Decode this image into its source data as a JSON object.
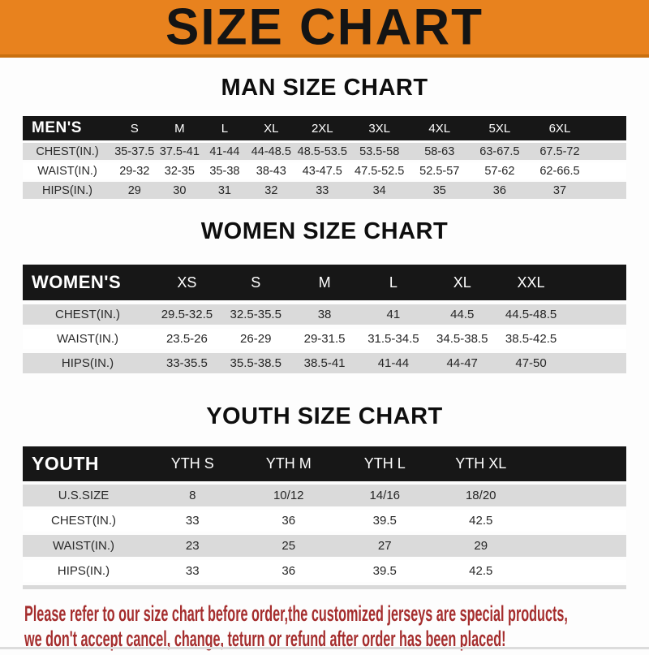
{
  "banner": {
    "title": "SIZE CHART",
    "bg_color": "#e8821e",
    "border_color": "#c9700f",
    "text_color": "#141414"
  },
  "sections": [
    {
      "id": "men",
      "heading": "MAN SIZE CHART",
      "header_label": "MEN'S",
      "columns": [
        "S",
        "M",
        "L",
        "XL",
        "2XL",
        "3XL",
        "4XL",
        "5XL",
        "6XL"
      ],
      "rows": [
        {
          "label": "CHEST(IN.)",
          "values": [
            "35-37.5",
            "37.5-41",
            "41-44",
            "44-48.5",
            "48.5-53.5",
            "53.5-58",
            "58-63",
            "63-67.5",
            "67.5-72"
          ]
        },
        {
          "label": "WAIST(IN.)",
          "values": [
            "29-32",
            "32-35",
            "35-38",
            "38-43",
            "43-47.5",
            "47.5-52.5",
            "52.5-57",
            "57-62",
            "62-66.5"
          ]
        },
        {
          "label": "HIPS(IN.)",
          "values": [
            "29",
            "30",
            "31",
            "32",
            "33",
            "34",
            "35",
            "36",
            "37"
          ]
        }
      ]
    },
    {
      "id": "women",
      "heading": "WOMEN SIZE CHART",
      "header_label": "WOMEN'S",
      "columns": [
        "XS",
        "S",
        "M",
        "L",
        "XL",
        "XXL"
      ],
      "rows": [
        {
          "label": "CHEST(IN.)",
          "values": [
            "29.5-32.5",
            "32.5-35.5",
            "38",
            "41",
            "44.5",
            "44.5-48.5"
          ]
        },
        {
          "label": "WAIST(IN.)",
          "values": [
            "23.5-26",
            "26-29",
            "29-31.5",
            "31.5-34.5",
            "34.5-38.5",
            "38.5-42.5"
          ]
        },
        {
          "label": "HIPS(IN.)",
          "values": [
            "33-35.5",
            "35.5-38.5",
            "38.5-41",
            "41-44",
            "44-47",
            "47-50"
          ]
        }
      ]
    },
    {
      "id": "youth",
      "heading": "YOUTH SIZE CHART",
      "header_label": "YOUTH",
      "columns": [
        "YTH S",
        "YTH M",
        "YTH L",
        "YTH XL"
      ],
      "rows": [
        {
          "label": "U.S.SIZE",
          "values": [
            "8",
            "10/12",
            "14/16",
            "18/20"
          ]
        },
        {
          "label": "CHEST(IN.)",
          "values": [
            "33",
            "36",
            "39.5",
            "42.5"
          ]
        },
        {
          "label": "WAIST(IN.)",
          "values": [
            "23",
            "25",
            "27",
            "29"
          ]
        },
        {
          "label": "HIPS(IN.)",
          "values": [
            "33",
            "36",
            "39.5",
            "42.5"
          ]
        }
      ]
    }
  ],
  "footer": {
    "lines": [
      "Please refer to our size chart before order,the customized jerseys are special products,",
      "we don't accept cancel, change, teturn or refund after order has been placed!"
    ],
    "text_color": "#a52e2e"
  },
  "colors": {
    "table_header_bg": "#171717",
    "row_stripe_gray": "#dadada",
    "row_stripe_white": "#ffffff"
  }
}
